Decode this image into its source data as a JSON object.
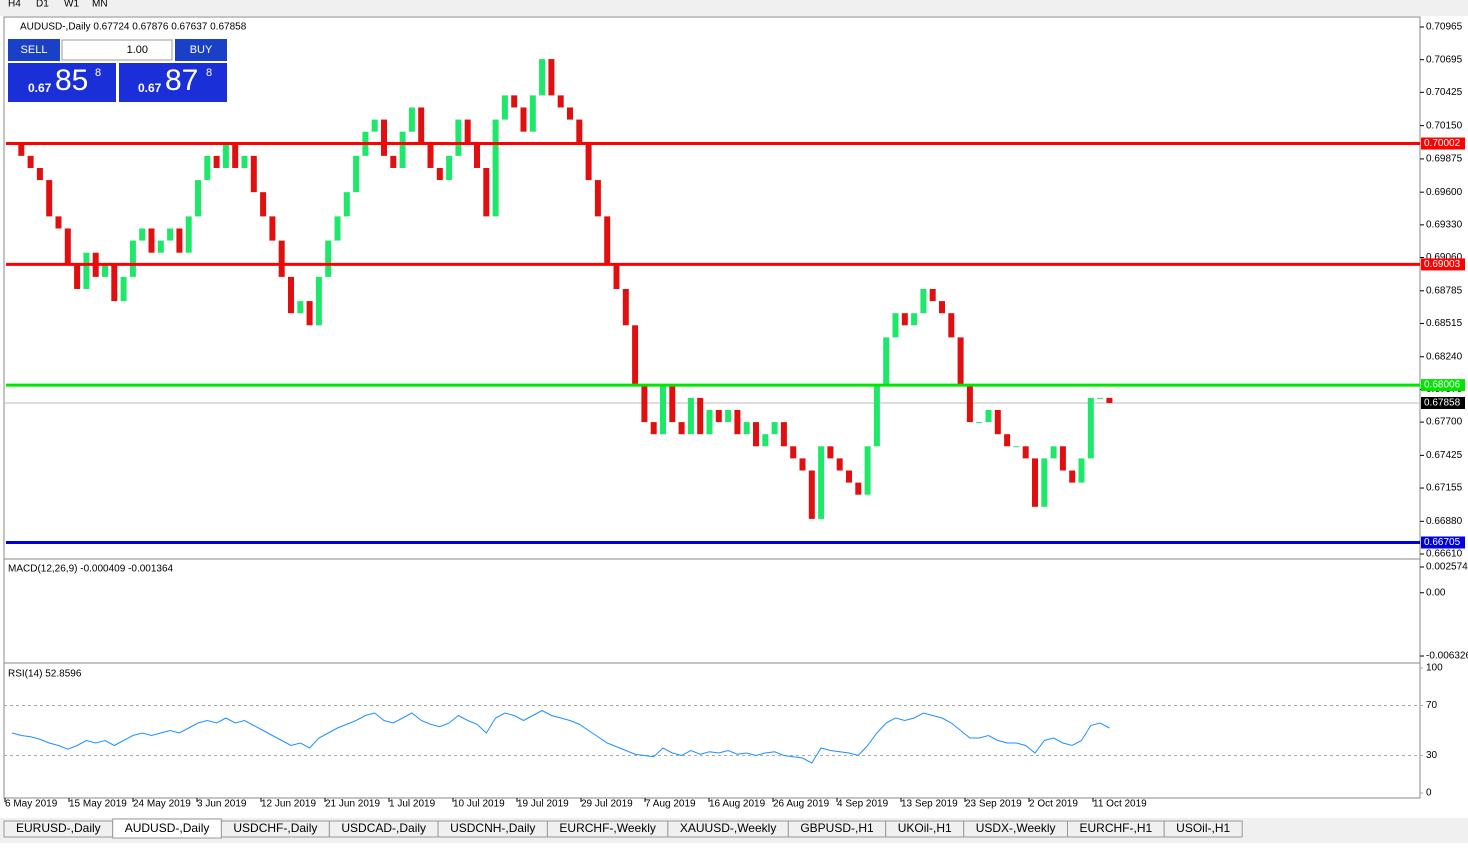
{
  "toolbar": {
    "timeframes": [
      "H4",
      "D1",
      "W1",
      "MN"
    ]
  },
  "chart": {
    "info": "AUDUSD-,Daily  0.67724 0.67876 0.67637 0.67858",
    "trade": {
      "sell": "SELL",
      "buy": "BUY",
      "lot": "1.00",
      "sell_big": "0.67",
      "sell_pips": "85",
      "sell_frac": "8",
      "buy_big": "0.67",
      "buy_pips": "87",
      "buy_frac": "8"
    },
    "price_axis": {
      "range": [
        0.6661,
        0.70965
      ],
      "ticks": [
        {
          "value": 0.70965,
          "label": "0.70965"
        },
        {
          "value": 0.70695,
          "label": "0.70695"
        },
        {
          "value": 0.70425,
          "label": "0.70425"
        },
        {
          "value": 0.7015,
          "label": "0.70150"
        },
        {
          "value": 0.69875,
          "label": "0.69875"
        },
        {
          "value": 0.696,
          "label": "0.69600"
        },
        {
          "value": 0.6933,
          "label": "0.69330"
        },
        {
          "value": 0.6906,
          "label": "0.69060"
        },
        {
          "value": 0.68785,
          "label": "0.68785"
        },
        {
          "value": 0.68515,
          "label": "0.68515"
        },
        {
          "value": 0.6824,
          "label": "0.68240"
        },
        {
          "value": 0.6797,
          "label": "0.67970"
        },
        {
          "value": 0.677,
          "label": "0.67700"
        },
        {
          "value": 0.67425,
          "label": "0.67425"
        },
        {
          "value": 0.67155,
          "label": "0.67155"
        },
        {
          "value": 0.6688,
          "label": "0.66880"
        },
        {
          "value": 0.6661,
          "label": "0.66610"
        }
      ]
    },
    "levels": [
      {
        "value": 0.70002,
        "color": "#ff0000"
      },
      {
        "value": 0.69003,
        "color": "#ff0000"
      },
      {
        "value": 0.68006,
        "color": "#00e600"
      },
      {
        "value": 0.66705,
        "color": "#0000dd"
      }
    ],
    "current": 0.67858,
    "closes": [
      0.7,
      0.699,
      0.698,
      0.697,
      0.694,
      0.693,
      0.69,
      0.688,
      0.691,
      0.689,
      0.69,
      0.687,
      0.689,
      0.692,
      0.693,
      0.691,
      0.692,
      0.693,
      0.691,
      0.694,
      0.697,
      0.699,
      0.698,
      0.7,
      0.698,
      0.699,
      0.696,
      0.694,
      0.692,
      0.689,
      0.686,
      0.687,
      0.685,
      0.689,
      0.692,
      0.694,
      0.696,
      0.699,
      0.701,
      0.702,
      0.699,
      0.698,
      0.701,
      0.703,
      0.7,
      0.698,
      0.697,
      0.699,
      0.702,
      0.7,
      0.698,
      0.694,
      0.702,
      0.704,
      0.703,
      0.701,
      0.704,
      0.707,
      0.704,
      0.703,
      0.702,
      0.7,
      0.697,
      0.694,
      0.69,
      0.688,
      0.685,
      0.68,
      0.677,
      0.676,
      0.68,
      0.677,
      0.676,
      0.679,
      0.676,
      0.678,
      0.677,
      0.678,
      0.676,
      0.677,
      0.675,
      0.676,
      0.677,
      0.675,
      0.674,
      0.673,
      0.669,
      0.675,
      0.674,
      0.673,
      0.672,
      0.671,
      0.675,
      0.68,
      0.684,
      0.686,
      0.685,
      0.686,
      0.688,
      0.687,
      0.686,
      0.684,
      0.68,
      0.677,
      0.677,
      0.678,
      0.676,
      0.675,
      0.675,
      0.674,
      0.67,
      0.674,
      0.675,
      0.673,
      0.672,
      0.674,
      0.679,
      0.679,
      0.67858
    ],
    "macd": {
      "label": "MACD(12,26,9) -0.000409 -0.001364",
      "range": [
        -0.006326,
        0.002574
      ],
      "ticks": [
        0.002574,
        {
          "value": 0,
          "label": "0.00"
        },
        -0.006326
      ]
    },
    "rsi": {
      "label": "RSI(14) 52.8596",
      "range": [
        0,
        100
      ],
      "ticks": [
        100,
        70,
        30,
        0
      ],
      "values": [
        48,
        46,
        45,
        43,
        40,
        38,
        35,
        38,
        42,
        40,
        42,
        38,
        42,
        46,
        48,
        46,
        48,
        50,
        48,
        52,
        56,
        58,
        56,
        60,
        56,
        58,
        54,
        50,
        46,
        42,
        38,
        40,
        36,
        44,
        48,
        52,
        55,
        58,
        62,
        64,
        58,
        56,
        60,
        64,
        58,
        55,
        53,
        56,
        62,
        58,
        55,
        48,
        60,
        64,
        62,
        58,
        62,
        66,
        62,
        60,
        58,
        55,
        50,
        45,
        40,
        37,
        34,
        31,
        30,
        29,
        36,
        32,
        30,
        34,
        31,
        33,
        32,
        34,
        31,
        32,
        30,
        32,
        33,
        30,
        29,
        28,
        24,
        36,
        34,
        33,
        32,
        30,
        38,
        48,
        56,
        60,
        58,
        60,
        64,
        62,
        60,
        56,
        50,
        44,
        44,
        46,
        42,
        40,
        40,
        38,
        32,
        42,
        44,
        40,
        38,
        42,
        54,
        56,
        52
      ]
    },
    "dates": [
      "6 May 2019",
      "15 May 2019",
      "24 May 2019",
      "3 Jun 2019",
      "12 Jun 2019",
      "21 Jun 2019",
      "1 Jul 2019",
      "10 Jul 2019",
      "19 Jul 2019",
      "29 Jul 2019",
      "7 Aug 2019",
      "16 Aug 2019",
      "26 Aug 2019",
      "4 Sep 2019",
      "13 Sep 2019",
      "23 Sep 2019",
      "2 Oct 2019",
      "11 Oct 2019"
    ]
  },
  "tabs": [
    "EURUSD-,Daily",
    "AUDUSD-,Daily",
    "USDCHF-,Daily",
    "USDCAD-,Daily",
    "USDCNH-,Daily",
    "EURCHF-,Weekly",
    "XAUUSD-,Weekly",
    "GBPUSD-,H1",
    "UKOil-,H1",
    "USDX-,Weekly",
    "EURCHF-,H1",
    "USOil-,H1"
  ]
}
